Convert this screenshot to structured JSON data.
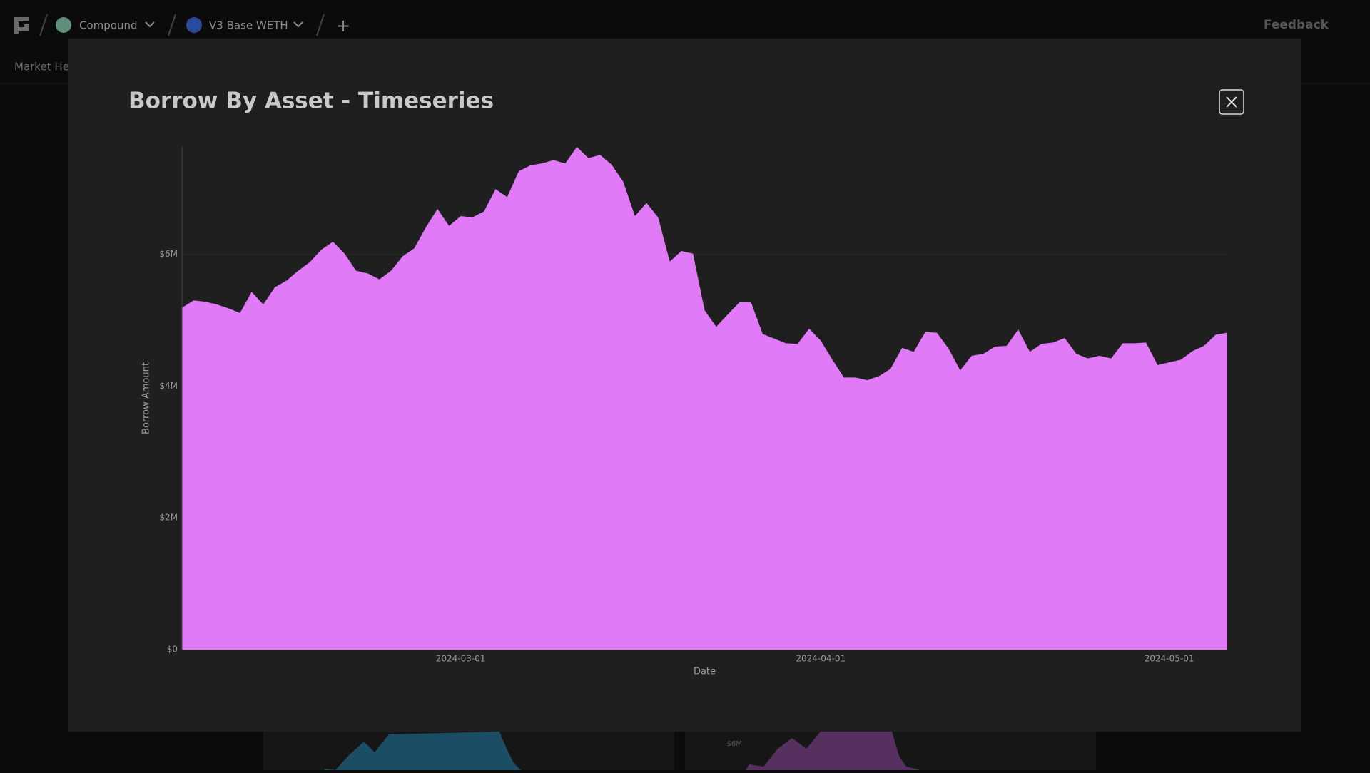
{
  "nav": {
    "protocol": "Compound",
    "market": "V3 Base WETH",
    "add": "+",
    "feedback": "Feedback",
    "tab": "Market Health"
  },
  "background": {
    "tick": "$6M"
  },
  "chart_data": {
    "type": "area",
    "title": "Borrow By Asset - Timeseries",
    "x_label": "Date",
    "y_label": "Borrow Amount",
    "color": "#e07af7",
    "grid": true,
    "x": [
      "2024-02-06",
      "2024-02-07",
      "2024-02-08",
      "2024-02-09",
      "2024-02-10",
      "2024-02-11",
      "2024-02-12",
      "2024-02-13",
      "2024-02-14",
      "2024-02-15",
      "2024-02-16",
      "2024-02-17",
      "2024-02-18",
      "2024-02-19",
      "2024-02-20",
      "2024-02-21",
      "2024-02-22",
      "2024-02-23",
      "2024-02-24",
      "2024-02-25",
      "2024-02-26",
      "2024-02-27",
      "2024-02-28",
      "2024-02-29",
      "2024-03-01",
      "2024-03-02",
      "2024-03-03",
      "2024-03-04",
      "2024-03-05",
      "2024-03-06",
      "2024-03-07",
      "2024-03-08",
      "2024-03-09",
      "2024-03-10",
      "2024-03-11",
      "2024-03-12",
      "2024-03-13",
      "2024-03-14",
      "2024-03-15",
      "2024-03-16",
      "2024-03-17",
      "2024-03-18",
      "2024-03-19",
      "2024-03-20",
      "2024-03-21",
      "2024-03-22",
      "2024-03-23",
      "2024-03-24",
      "2024-03-25",
      "2024-03-26",
      "2024-03-27",
      "2024-03-28",
      "2024-03-29",
      "2024-03-30",
      "2024-03-31",
      "2024-04-01",
      "2024-04-02",
      "2024-04-03",
      "2024-04-04",
      "2024-04-05",
      "2024-04-06",
      "2024-04-07",
      "2024-04-08",
      "2024-04-09",
      "2024-04-10",
      "2024-04-11",
      "2024-04-12",
      "2024-04-13",
      "2024-04-14",
      "2024-04-15",
      "2024-04-16",
      "2024-04-17",
      "2024-04-18",
      "2024-04-19",
      "2024-04-20",
      "2024-04-21",
      "2024-04-22",
      "2024-04-23",
      "2024-04-24",
      "2024-04-25",
      "2024-04-26",
      "2024-04-27",
      "2024-04-28",
      "2024-04-29",
      "2024-04-30",
      "2024-05-01",
      "2024-05-02",
      "2024-05-03",
      "2024-05-04",
      "2024-05-05",
      "2024-05-06"
    ],
    "values": [
      5190000,
      5300000,
      5280000,
      5240000,
      5180000,
      5110000,
      5430000,
      5240000,
      5500000,
      5600000,
      5750000,
      5880000,
      6070000,
      6190000,
      6010000,
      5750000,
      5710000,
      5620000,
      5750000,
      5970000,
      6090000,
      6410000,
      6690000,
      6430000,
      6580000,
      6560000,
      6650000,
      6990000,
      6870000,
      7260000,
      7350000,
      7380000,
      7430000,
      7380000,
      7630000,
      7460000,
      7510000,
      7360000,
      7100000,
      6580000,
      6780000,
      6560000,
      5890000,
      6050000,
      6010000,
      5150000,
      4900000,
      5090000,
      5270000,
      5270000,
      4790000,
      4720000,
      4650000,
      4640000,
      4870000,
      4690000,
      4400000,
      4130000,
      4130000,
      4090000,
      4150000,
      4260000,
      4580000,
      4520000,
      4820000,
      4810000,
      4570000,
      4240000,
      4460000,
      4490000,
      4600000,
      4610000,
      4860000,
      4520000,
      4640000,
      4660000,
      4730000,
      4490000,
      4420000,
      4460000,
      4420000,
      4650000,
      4650000,
      4660000,
      4320000,
      4360000,
      4400000,
      4530000,
      4610000,
      4780000,
      4810000
    ],
    "xlim": [
      "2024-02-06",
      "2024-05-06"
    ],
    "xticks": [
      "2024-03-01",
      "2024-04-01",
      "2024-05-01"
    ],
    "ylim": [
      0,
      7630000
    ],
    "yticks": [
      {
        "value": 0,
        "label": "$0"
      },
      {
        "value": 2000000,
        "label": "$2M"
      },
      {
        "value": 4000000,
        "label": "$4M"
      },
      {
        "value": 6000000,
        "label": "$6M"
      }
    ]
  }
}
